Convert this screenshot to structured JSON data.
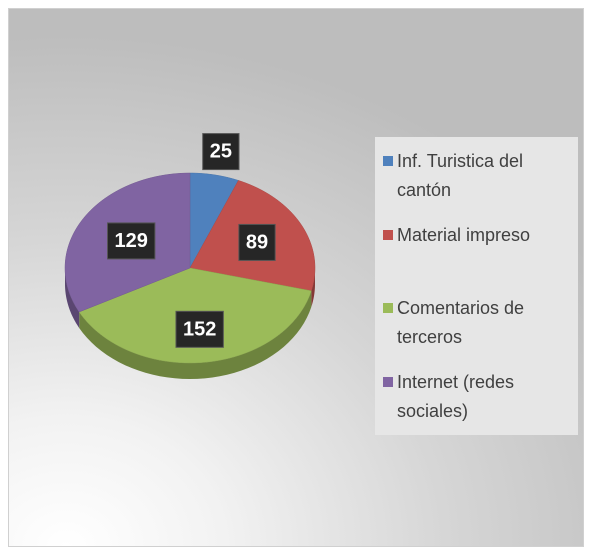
{
  "chart_data": {
    "type": "pie",
    "categories": [
      "Inf. Turistica del cantón",
      "Material impreso",
      "Comentarios de terceros",
      "Internet (redes sociales)"
    ],
    "values": [
      25,
      89,
      152,
      129
    ],
    "colors": [
      "#4f81bd",
      "#c0504d",
      "#9bbb59",
      "#8064a2"
    ],
    "legend": "right"
  }
}
